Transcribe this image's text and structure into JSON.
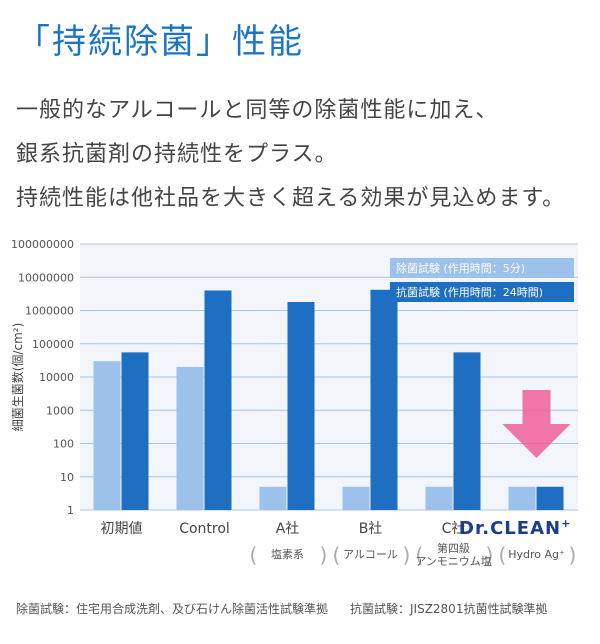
{
  "title": "「持続除菌」性能",
  "lead": [
    "一般的なアルコールと同等の除菌性能に加え、",
    "銀系抗菌剤の持続性をプラス。",
    "持続性能は他社品を大きく超える効果が見込めます。"
  ],
  "brand": {
    "name": "Dr.CLEAN",
    "mark": "+"
  },
  "footnotes": {
    "left": "除菌試験：住宅用合成洗剤、及び石けん除菌活性試験準拠",
    "right": "抗菌試験：JISZ2801抗菌性試験準拠"
  },
  "colors": {
    "light": "#9cc1ea",
    "dark": "#1e6fc2",
    "arrow": "#ef5f96",
    "axisLine": "#a9c6e8"
  },
  "chart_data": {
    "type": "bar",
    "scale": "log",
    "ylim": [
      1,
      100000000
    ],
    "yticks": [
      "100000000",
      "10000000",
      "1000000",
      "100000",
      "10000",
      "1000",
      "100",
      "10",
      "1"
    ],
    "ylabel": "細菌生菌数(個/cm²)",
    "categories": [
      "初期値",
      "Control",
      "A社",
      "B社",
      "C社",
      "Dr.CLEAN⁺"
    ],
    "sublabels": [
      "",
      "",
      "塩素系",
      "アルコール",
      "第四級\nアンモニウム塩",
      "Hydro Ag⁺"
    ],
    "series": [
      {
        "name": "除菌試験 (作用時間：5分)",
        "values": [
          30000,
          20000,
          5,
          5,
          5,
          5
        ]
      },
      {
        "name": "抗菌試験 (作用時間：24時間)",
        "values": [
          55000,
          4000000,
          1800000,
          4200000,
          55000,
          5
        ]
      }
    ],
    "legend": "top-right"
  }
}
